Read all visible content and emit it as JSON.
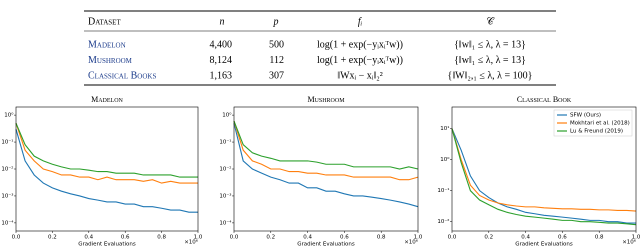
{
  "table": {
    "header": [
      "Dataset",
      "n",
      "p",
      "fᵢ",
      "𝒞"
    ],
    "rows": [
      [
        "Madelon",
        "4,400",
        "500",
        "log(1 + exp(−yᵢxᵢᵀw))",
        "{‖w‖₁ ≤ λ, λ = 13}"
      ],
      [
        "Mushroom",
        "8,124",
        "112",
        "log(1 + exp(−yᵢxᵢᵀw))",
        "{‖w‖₁ ≤ λ, λ = 13}"
      ],
      [
        "Classical Books",
        "1,163",
        "307",
        "‖Wxᵢ − xᵢ‖₂²",
        "{‖W‖₂,₁ ≤ λ, λ = 100}"
      ]
    ]
  },
  "chart_data": [
    {
      "type": "line",
      "title": "Madelon",
      "x_label": "Gradient Evaluations",
      "x_scale_label": "×10⁶",
      "y_log": true,
      "x": [
        0,
        0.05,
        0.1,
        0.15,
        0.2,
        0.25,
        0.3,
        0.35,
        0.4,
        0.45,
        0.5,
        0.55,
        0.6,
        0.65,
        0.7,
        0.75,
        0.8,
        0.85,
        0.9,
        0.95,
        1.0
      ],
      "xlim": [
        0,
        1.0
      ],
      "xticks": [
        {
          "value": 0,
          "label": "0.0"
        },
        {
          "value": 0.2,
          "label": "0.2"
        },
        {
          "value": 0.4,
          "label": "0.4"
        },
        {
          "value": 0.6,
          "label": "0.6"
        },
        {
          "value": 0.8,
          "label": "0.8"
        },
        {
          "value": 1,
          "label": "1.0"
        }
      ],
      "ylim": [
        5e-05,
        2
      ],
      "yticks": [
        {
          "value": 1,
          "label": "10⁰"
        },
        {
          "value": 0.1,
          "label": "10⁻¹"
        },
        {
          "value": 0.01,
          "label": "10⁻²"
        },
        {
          "value": 0.001,
          "label": "10⁻³"
        },
        {
          "value": 0.0001,
          "label": "10⁻⁴"
        }
      ],
      "series": [
        {
          "color": "#1f77b4",
          "values": [
            0.3,
            0.02,
            0.006,
            0.003,
            0.002,
            0.0015,
            0.0012,
            0.001,
            0.0008,
            0.0007,
            0.0006,
            0.0006,
            0.0005,
            0.0005,
            0.0004,
            0.0004,
            0.00035,
            0.0003,
            0.0003,
            0.00025,
            0.00025
          ]
        },
        {
          "color": "#ff7f0e",
          "values": [
            0.5,
            0.05,
            0.02,
            0.01,
            0.008,
            0.006,
            0.006,
            0.005,
            0.005,
            0.004,
            0.005,
            0.004,
            0.004,
            0.004,
            0.0035,
            0.004,
            0.003,
            0.0035,
            0.003,
            0.003,
            0.003
          ]
        },
        {
          "color": "#2ca02c",
          "values": [
            0.5,
            0.08,
            0.03,
            0.02,
            0.015,
            0.012,
            0.01,
            0.01,
            0.009,
            0.008,
            0.008,
            0.007,
            0.007,
            0.007,
            0.006,
            0.006,
            0.006,
            0.006,
            0.005,
            0.005,
            0.005
          ]
        }
      ]
    },
    {
      "type": "line",
      "title": "Mushroom",
      "x_label": "Gradient Evaluations",
      "x_scale_label": "×10⁶",
      "y_log": true,
      "x": [
        0,
        0.05,
        0.1,
        0.15,
        0.2,
        0.25,
        0.3,
        0.35,
        0.4,
        0.45,
        0.5,
        0.55,
        0.6,
        0.65,
        0.7,
        0.75,
        0.8,
        0.85,
        0.9,
        0.95,
        1.0
      ],
      "xlim": [
        0,
        1.0
      ],
      "xticks": [
        {
          "value": 0,
          "label": "0.0"
        },
        {
          "value": 0.2,
          "label": "0.2"
        },
        {
          "value": 0.4,
          "label": "0.4"
        },
        {
          "value": 0.6,
          "label": "0.6"
        },
        {
          "value": 0.8,
          "label": "0.8"
        },
        {
          "value": 1,
          "label": "1.0"
        }
      ],
      "ylim": [
        5e-05,
        2
      ],
      "yticks": [
        {
          "value": 1,
          "label": "10⁰"
        },
        {
          "value": 0.1,
          "label": "10⁻¹"
        },
        {
          "value": 0.01,
          "label": "10⁻²"
        },
        {
          "value": 0.001,
          "label": "10⁻³"
        },
        {
          "value": 0.0001,
          "label": "10⁻⁴"
        }
      ],
      "series": [
        {
          "color": "#1f77b4",
          "values": [
            0.5,
            0.02,
            0.01,
            0.007,
            0.005,
            0.004,
            0.003,
            0.003,
            0.002,
            0.002,
            0.0015,
            0.0015,
            0.0012,
            0.001,
            0.001,
            0.0009,
            0.0008,
            0.0007,
            0.0006,
            0.0005,
            0.0004
          ]
        },
        {
          "color": "#ff7f0e",
          "values": [
            0.6,
            0.05,
            0.02,
            0.015,
            0.01,
            0.01,
            0.008,
            0.008,
            0.007,
            0.007,
            0.006,
            0.006,
            0.006,
            0.005,
            0.005,
            0.005,
            0.005,
            0.005,
            0.004,
            0.004,
            0.005
          ]
        },
        {
          "color": "#2ca02c",
          "values": [
            0.6,
            0.08,
            0.04,
            0.03,
            0.025,
            0.02,
            0.02,
            0.02,
            0.02,
            0.018,
            0.015,
            0.015,
            0.015,
            0.012,
            0.012,
            0.012,
            0.012,
            0.012,
            0.01,
            0.012,
            0.01
          ]
        }
      ]
    },
    {
      "type": "line",
      "title": "Classical Book",
      "x_label": "Gradient Evaluations",
      "x_scale_label": "×10⁶",
      "y_log": true,
      "legend": "upper right",
      "x": [
        0,
        0.05,
        0.1,
        0.15,
        0.2,
        0.25,
        0.3,
        0.35,
        0.4,
        0.45,
        0.5,
        0.55,
        0.6,
        0.65,
        0.7,
        0.75,
        0.8,
        0.85,
        0.9,
        0.95,
        1.0
      ],
      "xlim": [
        0,
        1.0
      ],
      "xticks": [
        {
          "value": 0,
          "label": "0.0"
        },
        {
          "value": 0.2,
          "label": "0.2"
        },
        {
          "value": 0.4,
          "label": "0.4"
        },
        {
          "value": 0.6,
          "label": "0.6"
        },
        {
          "value": 0.8,
          "label": "0.8"
        },
        {
          "value": 1,
          "label": "1.0"
        }
      ],
      "ylim": [
        0.005,
        50
      ],
      "yticks": [
        {
          "value": 10,
          "label": "10¹"
        },
        {
          "value": 1,
          "label": "10⁰"
        },
        {
          "value": 0.1,
          "label": "10⁻¹"
        },
        {
          "value": 0.01,
          "label": "10⁻²"
        }
      ],
      "series": [
        {
          "name": "SFW (Ours)",
          "color": "#1f77b4",
          "values": [
            10,
            2,
            0.3,
            0.1,
            0.06,
            0.04,
            0.03,
            0.025,
            0.02,
            0.018,
            0.016,
            0.015,
            0.014,
            0.013,
            0.012,
            0.011,
            0.011,
            0.01,
            0.01,
            0.009,
            0.009
          ]
        },
        {
          "name": "Mokhtari et al. (2018)",
          "color": "#ff7f0e",
          "values": [
            10,
            1,
            0.15,
            0.07,
            0.05,
            0.04,
            0.035,
            0.032,
            0.03,
            0.03,
            0.028,
            0.027,
            0.026,
            0.026,
            0.025,
            0.025,
            0.024,
            0.024,
            0.023,
            0.023,
            0.022
          ]
        },
        {
          "name": "Lu & Freund (2019)",
          "color": "#2ca02c",
          "values": [
            10,
            0.8,
            0.1,
            0.05,
            0.035,
            0.025,
            0.02,
            0.017,
            0.015,
            0.014,
            0.013,
            0.012,
            0.011,
            0.011,
            0.01,
            0.01,
            0.0095,
            0.009,
            0.009,
            0.0085,
            0.008
          ]
        }
      ]
    }
  ]
}
